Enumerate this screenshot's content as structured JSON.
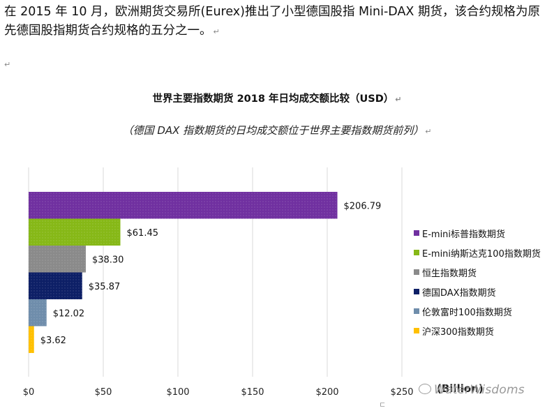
{
  "paragraph": {
    "text": "在 2015 年 10 月，欧洲期货交易所(Eurex)推出了小型德国股指 Mini-DAX 期货，该合约规格为原先德国股指期货合约规格的五分之一。",
    "mark": "↵"
  },
  "empty_mark": "↵",
  "chart_data": {
    "type": "bar",
    "orientation": "horizontal",
    "title": "世界主要指数期货 2018 年日均成交额比较（USD）",
    "subtitle": "（德国 DAX 指数期货的日均成交额位于世界主要指数期货前列）",
    "title_mark": "↵",
    "subtitle_mark": "↵",
    "categories": [
      "E-mini标普指数期货",
      "E-mini纳斯达克100指数期货",
      "恒生指数期货",
      "德国DAX指数期货",
      "伦敦富时100指数期货",
      "沪深300指数期货"
    ],
    "values": [
      206.79,
      61.45,
      38.3,
      35.87,
      12.02,
      3.62
    ],
    "data_labels": [
      "$206.79",
      "$61.45",
      "$38.30",
      "$35.87",
      "$12.02",
      "$3.62"
    ],
    "colors": [
      "#7030a0",
      "#86b817",
      "#8a8a8a",
      "#0d1f66",
      "#6f8dab",
      "#ffc000"
    ],
    "xlim": [
      0,
      250
    ],
    "xticks": [
      0,
      50,
      100,
      150,
      200,
      250
    ],
    "xtick_labels": [
      "$0",
      "$50",
      "$100",
      "$150",
      "$200",
      "$250"
    ],
    "unit_label": "(Billion)",
    "grid": true,
    "legend_position": "right"
  },
  "watermark": {
    "text": "WaterWisdoms",
    "icon": "wechat-icon",
    "stray": "ㄷ"
  }
}
